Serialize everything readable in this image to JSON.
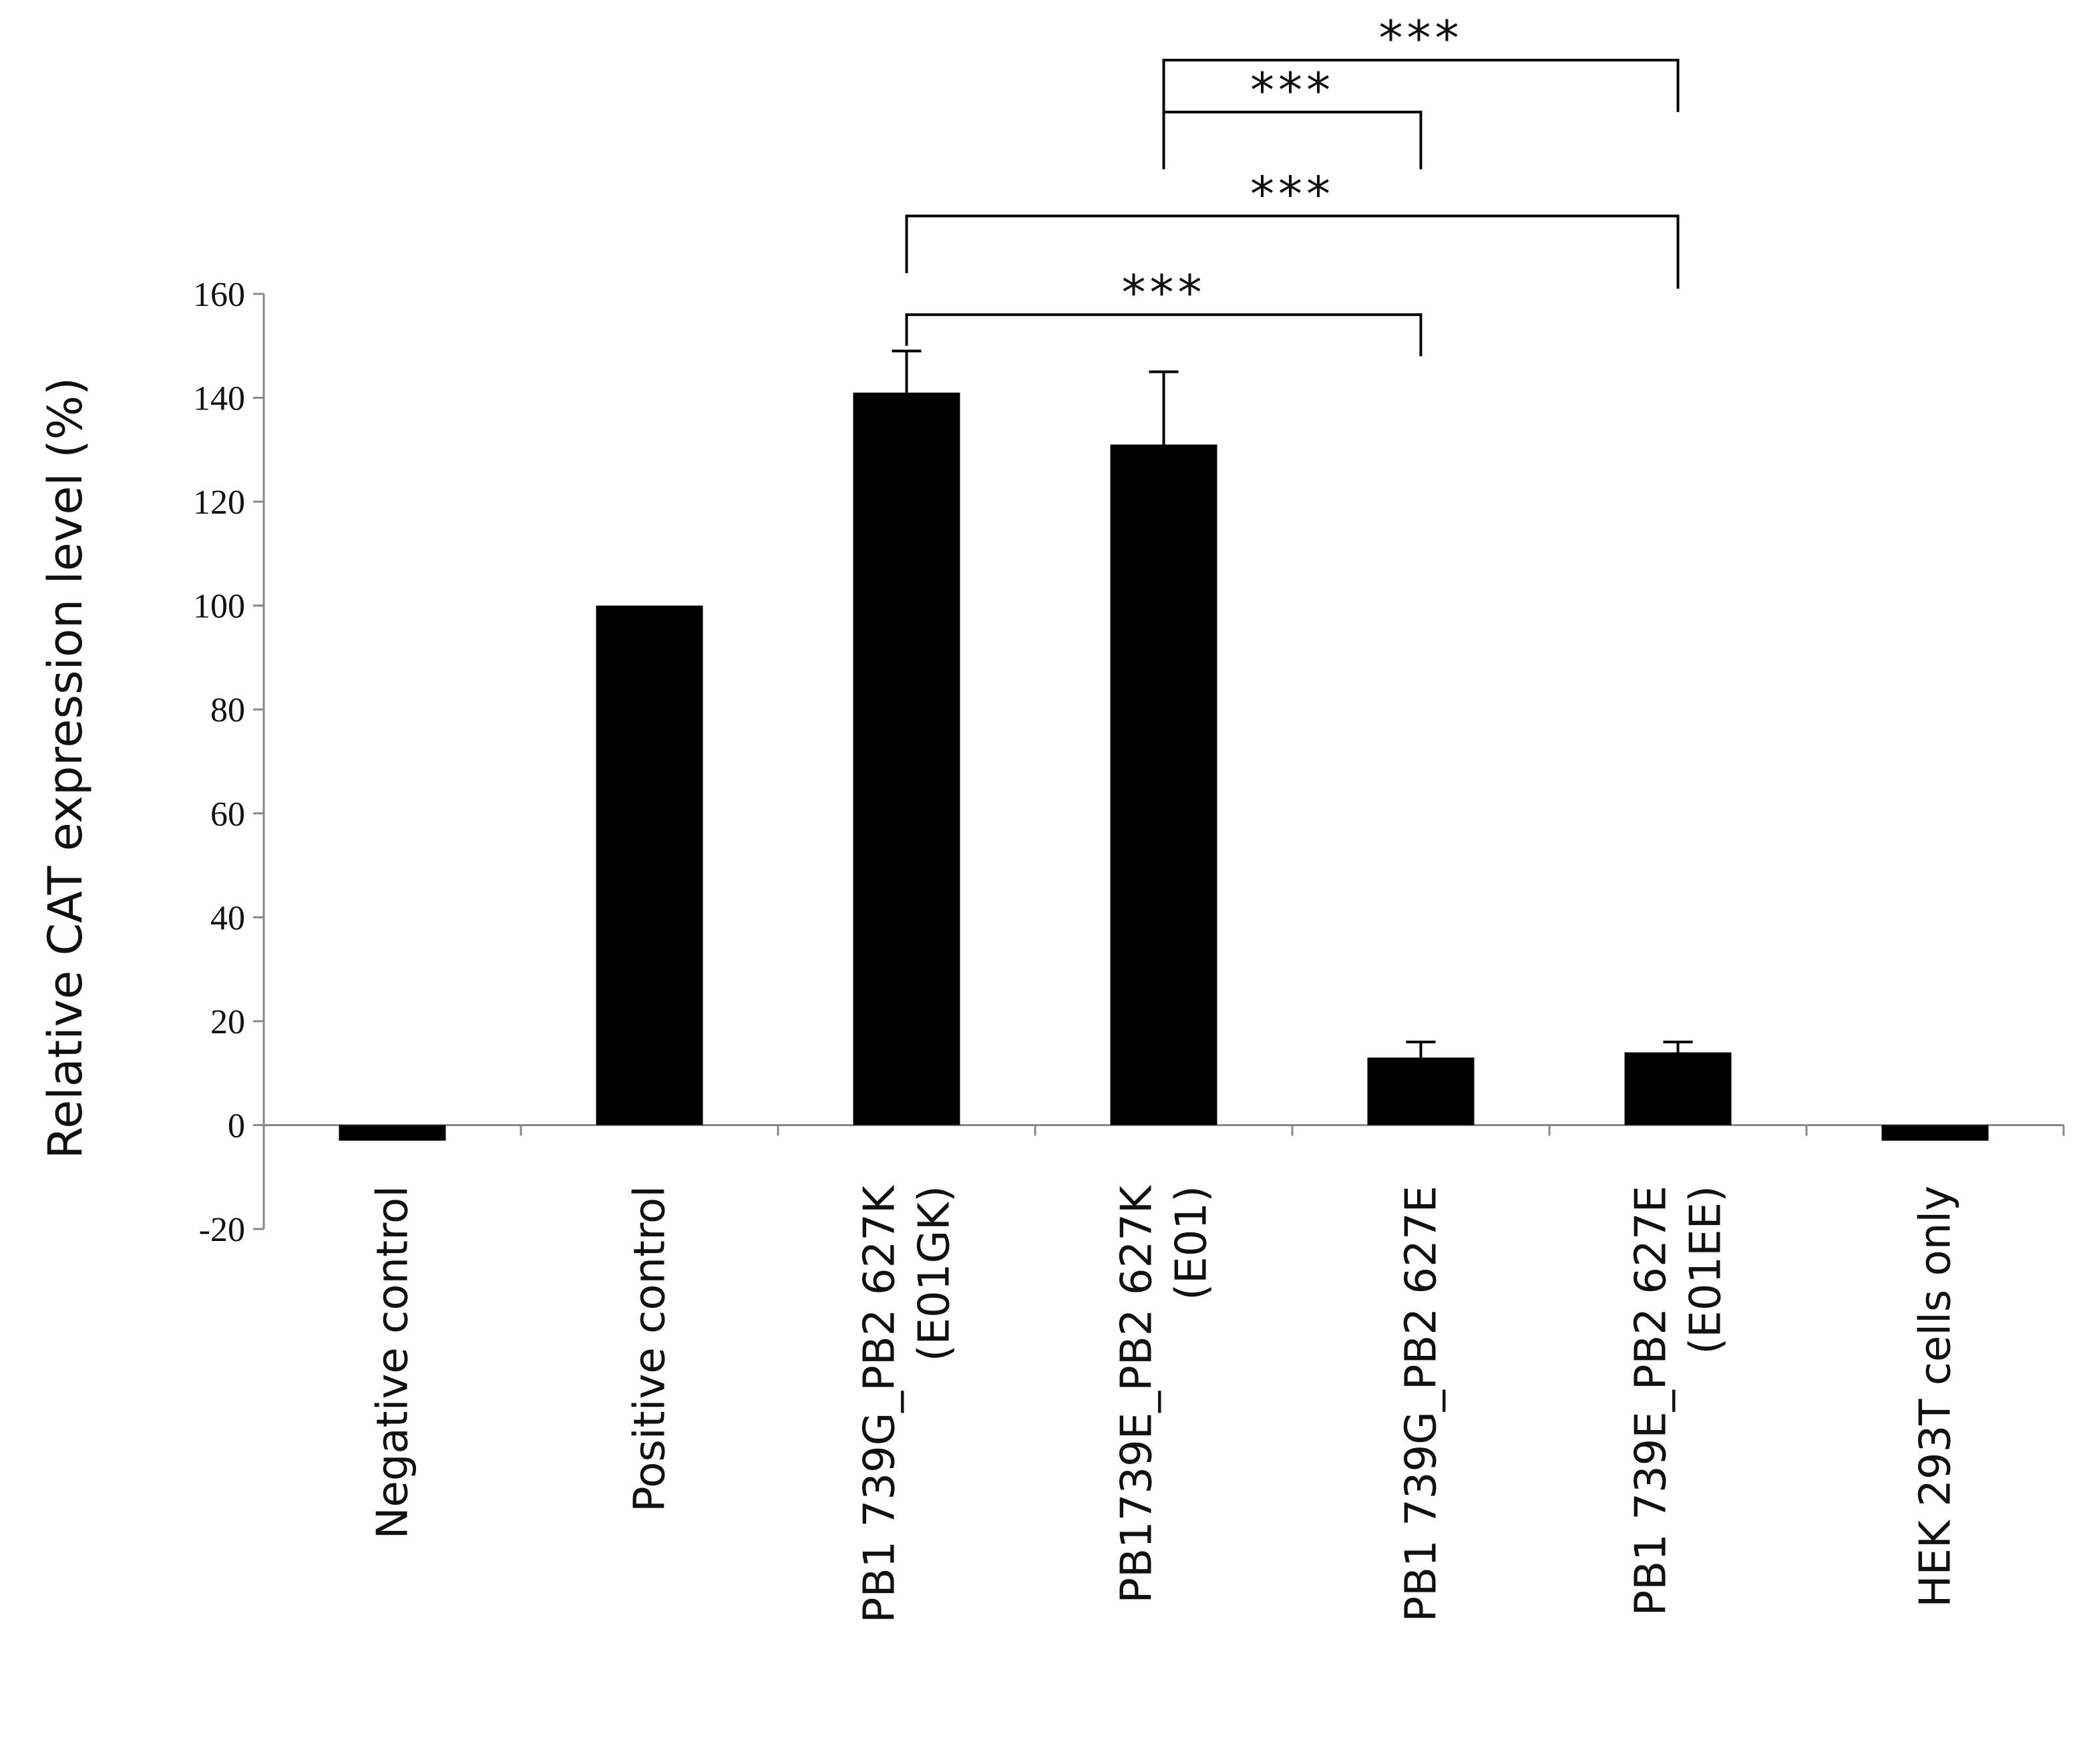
{
  "chart_data": {
    "type": "bar",
    "ylabel": "Relative CAT expression level (%)",
    "xlabel": "",
    "ylim": [
      -20,
      160
    ],
    "yticks": [
      -20,
      0,
      20,
      40,
      60,
      80,
      100,
      120,
      140,
      160
    ],
    "grid": false,
    "legend": "none",
    "bar_color": "#000000",
    "categories": [
      [
        "Negative control"
      ],
      [
        "Positive control"
      ],
      [
        "PB1 739G_PB2 627K",
        "(E01GK)"
      ],
      [
        "PB1739E_PB2 627K",
        "(E01)"
      ],
      [
        "PB1 739G_PB2 627E"
      ],
      [
        "PB1 739E_PB2 627E",
        "(E01EE)"
      ],
      [
        "HEK 293T cells only"
      ]
    ],
    "values": [
      -3,
      100,
      141,
      131,
      13,
      14,
      -3
    ],
    "errors": [
      0,
      0,
      8,
      14,
      3,
      2,
      0
    ],
    "significance": [
      {
        "from": 2,
        "to": 4,
        "label": "***",
        "y": 156,
        "left_drop": 150,
        "right_drop": 148
      },
      {
        "from": 2,
        "to": 5,
        "label": "***",
        "y": 175,
        "left_drop": 164,
        "right_drop": 161
      },
      {
        "from": 3,
        "to": 4,
        "label": "***",
        "y": 195,
        "left_drop": 184,
        "right_drop": 184
      },
      {
        "from": 3,
        "to": 5,
        "label": "***",
        "y": 205,
        "left_drop": 195,
        "right_drop": 195
      }
    ]
  }
}
